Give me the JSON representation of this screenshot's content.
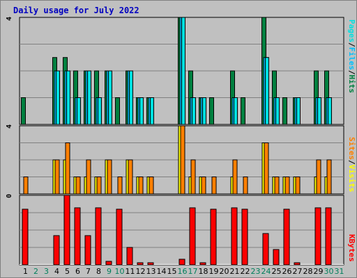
{
  "title": "Daily usage for July 2022",
  "colors": {
    "hits": "#008040",
    "files": "#00c0ff",
    "pages": "#00e0e0",
    "visits": "#ffff00",
    "sites": "#ff8000",
    "kbytes": "#ff0000",
    "weekend_label": "#00805c",
    "weekday_label": "#000000",
    "text": "#0000c0"
  },
  "legend": {
    "pages": "Pages",
    "files": "Files",
    "hits": "Hits",
    "sites": "Sites",
    "visits": "Visits",
    "kbytes": "KBytes",
    "separator": "/"
  },
  "axis_max": {
    "top": "4",
    "middle": "4",
    "bottom": "0"
  },
  "chart_data": [
    {
      "type": "bar",
      "panel": "top",
      "categories": [
        "1",
        "2",
        "3",
        "4",
        "5",
        "6",
        "7",
        "8",
        "9",
        "10",
        "11",
        "12",
        "13",
        "14",
        "15",
        "16",
        "17",
        "18",
        "19",
        "20",
        "21",
        "22",
        "23",
        "24",
        "25",
        "26",
        "27",
        "28",
        "29",
        "30",
        "31"
      ],
      "weekend_days": [
        "2",
        "3",
        "9",
        "10",
        "16",
        "17",
        "23",
        "24",
        "30",
        "31"
      ],
      "ylim": [
        0,
        4
      ],
      "grid": true,
      "series": [
        {
          "name": "Hits",
          "values": [
            1,
            0,
            0,
            2.5,
            2.5,
            2,
            2,
            2,
            2,
            1,
            2,
            1,
            1,
            0,
            0,
            4,
            2,
            1,
            1,
            0,
            2,
            1,
            0,
            4,
            2,
            1,
            1,
            0,
            2,
            2,
            0
          ]
        },
        {
          "name": "Files",
          "values": [
            0,
            0,
            0,
            2,
            2,
            1,
            2,
            1,
            2,
            0,
            2,
            1,
            1,
            0,
            0,
            4,
            1,
            1,
            0,
            0,
            1,
            0,
            0,
            2.5,
            1,
            0,
            1,
            0,
            1,
            1,
            0
          ]
        },
        {
          "name": "Pages",
          "values": [
            0,
            0,
            0,
            2,
            2,
            1,
            2,
            1,
            2,
            0,
            2,
            1,
            1,
            0,
            0,
            4,
            1,
            1,
            0,
            0,
            1,
            0,
            0,
            2.5,
            1,
            0,
            1,
            0,
            1,
            1,
            0
          ]
        }
      ]
    },
    {
      "type": "bar",
      "panel": "middle",
      "categories": [
        "1",
        "2",
        "3",
        "4",
        "5",
        "6",
        "7",
        "8",
        "9",
        "10",
        "11",
        "12",
        "13",
        "14",
        "15",
        "16",
        "17",
        "18",
        "19",
        "20",
        "21",
        "22",
        "23",
        "24",
        "25",
        "26",
        "27",
        "28",
        "29",
        "30",
        "31"
      ],
      "ylim": [
        0,
        4
      ],
      "grid": true,
      "series": [
        {
          "name": "Visits",
          "values": [
            0,
            0,
            0,
            2,
            2,
            1,
            1,
            1,
            2,
            0,
            2,
            1,
            1,
            0,
            0,
            4,
            1,
            1,
            0,
            0,
            1,
            0,
            0,
            3,
            1,
            1,
            1,
            0,
            1,
            1,
            0
          ]
        },
        {
          "name": "Sites",
          "values": [
            1,
            0,
            0,
            2,
            3,
            1,
            2,
            1,
            2,
            1,
            2,
            1,
            1,
            0,
            0,
            4,
            2,
            1,
            1,
            0,
            2,
            1,
            0,
            3,
            1,
            1,
            1,
            0,
            2,
            2,
            0
          ]
        }
      ]
    },
    {
      "type": "bar",
      "panel": "bottom",
      "categories": [
        "1",
        "2",
        "3",
        "4",
        "5",
        "6",
        "7",
        "8",
        "9",
        "10",
        "11",
        "12",
        "13",
        "14",
        "15",
        "16",
        "17",
        "18",
        "19",
        "20",
        "21",
        "22",
        "23",
        "24",
        "25",
        "26",
        "27",
        "28",
        "29",
        "30",
        "31"
      ],
      "ylim": [
        0,
        100
      ],
      "grid": true,
      "series": [
        {
          "name": "KBytes",
          "values": [
            80,
            0,
            0,
            42,
            100,
            82,
            42,
            82,
            5,
            80,
            25,
            3,
            3,
            0,
            0,
            8,
            82,
            3,
            80,
            0,
            82,
            80,
            0,
            45,
            22,
            80,
            3,
            0,
            82,
            82,
            0
          ]
        }
      ]
    }
  ]
}
